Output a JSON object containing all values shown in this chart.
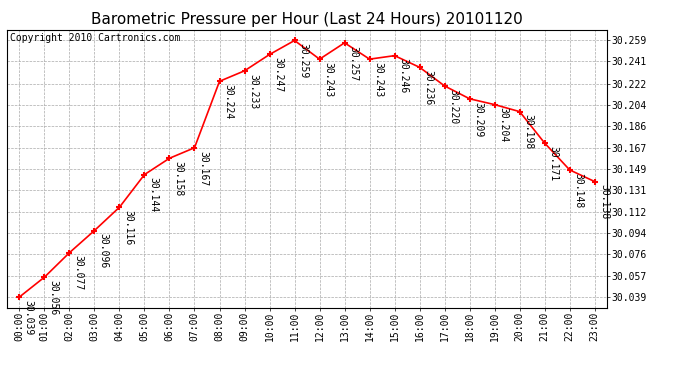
{
  "title": "Barometric Pressure per Hour (Last 24 Hours) 20101120",
  "copyright": "Copyright 2010 Cartronics.com",
  "hours": [
    "00:00",
    "01:00",
    "02:00",
    "03:00",
    "04:00",
    "05:00",
    "06:00",
    "07:00",
    "08:00",
    "09:00",
    "10:00",
    "11:00",
    "12:00",
    "13:00",
    "14:00",
    "15:00",
    "16:00",
    "17:00",
    "18:00",
    "19:00",
    "20:00",
    "21:00",
    "22:00",
    "23:00"
  ],
  "values": [
    30.039,
    30.056,
    30.077,
    30.096,
    30.116,
    30.144,
    30.158,
    30.167,
    30.224,
    30.233,
    30.247,
    30.259,
    30.243,
    30.257,
    30.243,
    30.246,
    30.236,
    30.22,
    30.209,
    30.204,
    30.198,
    30.171,
    30.148,
    30.138
  ],
  "ylim_min": 30.03,
  "ylim_max": 30.268,
  "yticks": [
    30.039,
    30.057,
    30.076,
    30.094,
    30.112,
    30.131,
    30.149,
    30.167,
    30.186,
    30.204,
    30.222,
    30.241,
    30.259
  ],
  "line_color": "#ff0000",
  "marker_color": "#ff0000",
  "bg_color": "#ffffff",
  "plot_bg_color": "#ffffff",
  "grid_color": "#aaaaaa",
  "title_fontsize": 11,
  "label_fontsize": 7,
  "tick_fontsize": 7,
  "copyright_fontsize": 7
}
